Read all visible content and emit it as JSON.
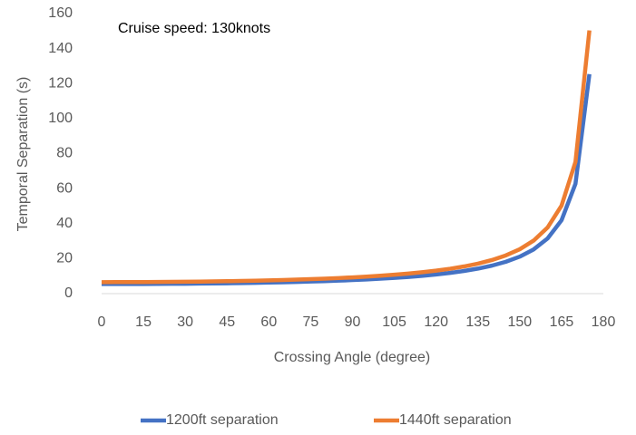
{
  "chart_data": {
    "type": "line",
    "annotation": "Cruise speed: 130knots",
    "x_label": "Crossing Angle (degree)",
    "y_label": "Temporal Separation (s)",
    "x": [
      0,
      5,
      10,
      15,
      20,
      25,
      30,
      35,
      40,
      45,
      50,
      55,
      60,
      65,
      70,
      75,
      80,
      85,
      90,
      95,
      100,
      105,
      110,
      115,
      120,
      125,
      130,
      135,
      140,
      145,
      150,
      155,
      160,
      165,
      170,
      175
    ],
    "series": [
      {
        "name": "1200ft separation",
        "color": "#4472c4",
        "values": [
          5.47,
          5.48,
          5.49,
          5.52,
          5.55,
          5.6,
          5.66,
          5.74,
          5.82,
          5.92,
          6.04,
          6.17,
          6.32,
          6.49,
          6.69,
          6.9,
          7.14,
          7.42,
          7.74,
          8.1,
          8.51,
          8.99,
          9.54,
          10.18,
          10.94,
          11.85,
          12.94,
          14.29,
          15.99,
          18.19,
          21.13,
          25.27,
          31.5,
          41.91,
          62.76,
          125.4
        ]
      },
      {
        "name": "1440ft separation",
        "color": "#ed7d31",
        "values": [
          6.56,
          6.57,
          6.58,
          6.62,
          6.66,
          6.72,
          6.79,
          6.88,
          6.98,
          7.1,
          7.24,
          7.4,
          7.57,
          7.78,
          8.01,
          8.27,
          8.56,
          8.9,
          9.28,
          9.71,
          10.21,
          10.78,
          11.44,
          12.21,
          13.12,
          14.21,
          15.52,
          17.14,
          19.18,
          21.82,
          25.35,
          30.31,
          37.78,
          50.26,
          75.27,
          150.39
        ]
      }
    ],
    "xlim": [
      0,
      180
    ],
    "xticks": [
      0,
      15,
      30,
      45,
      60,
      75,
      90,
      105,
      120,
      135,
      150,
      165,
      180
    ],
    "ylim": [
      0,
      160
    ],
    "yticks": [
      0,
      20,
      40,
      60,
      80,
      100,
      120,
      140,
      160
    ],
    "grid": false,
    "legend": "bottom"
  }
}
